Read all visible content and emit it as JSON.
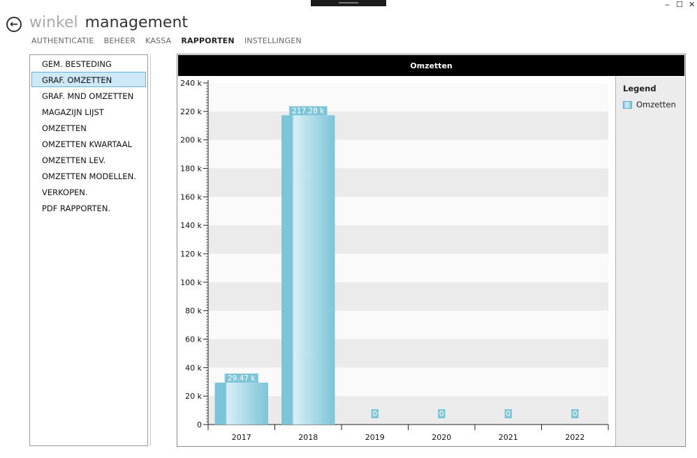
{
  "window": {
    "minimize": "‒",
    "maximize": "☐",
    "close": "✕"
  },
  "app": {
    "title_light": "winkel",
    "title_dark": "management",
    "back_icon": "back-arrow-icon"
  },
  "nav": {
    "items": [
      "AUTHENTICATIE",
      "BEHEER",
      "KASSA",
      "RAPPORTEN",
      "INSTELLINGEN"
    ],
    "active": "RAPPORTEN"
  },
  "sidebar": {
    "items": [
      "GEM. BESTEDING",
      "GRAF. OMZETTEN",
      "GRAF. MND OMZETTEN",
      "MAGAZIJN LIJST",
      "OMZETTEN",
      "OMZETTEN KWARTAAL",
      "OMZETTEN LEV.",
      "OMZETTEN MODELLEN.",
      "VERKOPEN.",
      "PDF RAPPORTEN."
    ],
    "selected": "GRAF. OMZETTEN"
  },
  "chart_data": {
    "type": "bar",
    "title": "Omzetten",
    "categories": [
      "2017",
      "2018",
      "2019",
      "2020",
      "2021",
      "2022"
    ],
    "series": [
      {
        "name": "Omzetten",
        "values": [
          29470,
          217280,
          0,
          0,
          0,
          0
        ]
      }
    ],
    "data_labels": [
      "29.47 k",
      "217.28 k",
      "0",
      "0",
      "0",
      "0"
    ],
    "ylim": [
      0,
      240000
    ],
    "y_ticks": [
      "0",
      "20 k",
      "40 k",
      "60 k",
      "80 k",
      "100 k",
      "120 k",
      "140 k",
      "160 k",
      "180 k",
      "200 k",
      "220 k",
      "240 k"
    ],
    "legend": {
      "title": "Legend",
      "placement": "right"
    },
    "colors": {
      "bar": "#7cc4d8",
      "band": "#ebebeb",
      "header": "#000000"
    },
    "grid": true
  }
}
